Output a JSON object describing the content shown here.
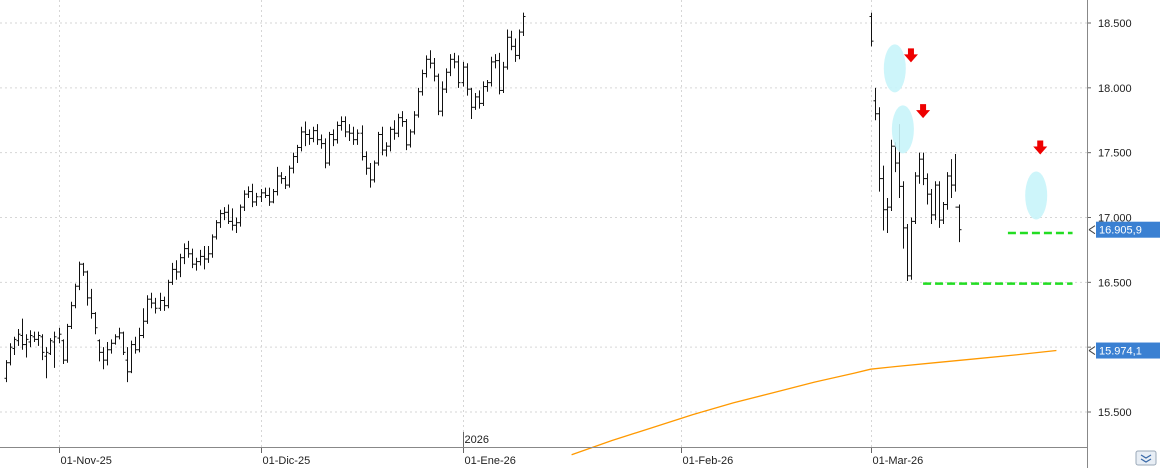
{
  "chart_data": {
    "type": "ohlc",
    "title": "",
    "xlabel": "",
    "ylabel": "",
    "ylim": [
      15200,
      18650
    ],
    "y_ticks": [
      {
        "value": 15500,
        "label": "15.500"
      },
      {
        "value": 16000,
        "label": ""
      },
      {
        "value": 16500,
        "label": "16.500"
      },
      {
        "value": 17000,
        "label": "17.000"
      },
      {
        "value": 17500,
        "label": "17.500"
      },
      {
        "value": 18000,
        "label": "18.000"
      },
      {
        "value": 18500,
        "label": "18.500"
      }
    ],
    "x_ticks": [
      {
        "index": 13,
        "label": "01-Nov-25"
      },
      {
        "index": 63,
        "label": "01-Dic-25"
      },
      {
        "index": 113,
        "label": "01-Ene-26"
      },
      {
        "index": 167,
        "label": "01-Feb-26"
      },
      {
        "index": 214,
        "label": "01-Mar-26"
      }
    ],
    "year_marker": {
      "index": 113,
      "label": "2026"
    },
    "grid": true,
    "series": [
      {
        "type": "ohlc",
        "bars": [
          [
            15760,
            15900,
            15730,
            15880
          ],
          [
            15880,
            16030,
            15860,
            16000
          ],
          [
            15990,
            16080,
            15940,
            16060
          ],
          [
            16050,
            16140,
            16010,
            16100
          ],
          [
            16090,
            16220,
            15980,
            16020
          ],
          [
            16020,
            16100,
            15920,
            16060
          ],
          [
            16040,
            16130,
            16000,
            16090
          ],
          [
            16080,
            16120,
            16040,
            16060
          ],
          [
            16060,
            16120,
            16010,
            16090
          ],
          [
            16080,
            16100,
            15900,
            15960
          ],
          [
            15930,
            16000,
            15760,
            15960
          ],
          [
            15950,
            16070,
            15940,
            16050
          ],
          [
            16040,
            16120,
            15840,
            16080
          ],
          [
            16070,
            16150,
            16030,
            16100
          ],
          [
            16050,
            16060,
            15870,
            15900
          ],
          [
            15900,
            16180,
            15880,
            16160
          ],
          [
            16160,
            16350,
            16140,
            16320
          ],
          [
            16320,
            16490,
            16300,
            16470
          ],
          [
            16470,
            16660,
            16440,
            16640
          ],
          [
            16640,
            16650,
            16550,
            16580
          ],
          [
            16580,
            16590,
            16320,
            16380
          ],
          [
            16380,
            16450,
            16220,
            16260
          ],
          [
            16260,
            16270,
            16100,
            16150
          ],
          [
            16050,
            16060,
            15890,
            15960
          ],
          [
            15960,
            16000,
            15830,
            15900
          ],
          [
            15900,
            16040,
            15860,
            15980
          ],
          [
            15980,
            16060,
            15950,
            16030
          ],
          [
            16030,
            16100,
            16020,
            16080
          ],
          [
            16080,
            16150,
            16060,
            16110
          ],
          [
            16110,
            16120,
            15940,
            15960
          ],
          [
            15900,
            16000,
            15730,
            15810
          ],
          [
            15810,
            16050,
            15800,
            16020
          ],
          [
            16020,
            16080,
            15950,
            15980
          ],
          [
            15980,
            16150,
            15960,
            16090
          ],
          [
            16090,
            16300,
            16070,
            16200
          ],
          [
            16200,
            16400,
            16180,
            16370
          ],
          [
            16370,
            16420,
            16300,
            16340
          ],
          [
            16340,
            16380,
            16260,
            16300
          ],
          [
            16300,
            16420,
            16280,
            16360
          ],
          [
            16360,
            16390,
            16280,
            16320
          ],
          [
            16320,
            16520,
            16300,
            16500
          ],
          [
            16500,
            16650,
            16480,
            16600
          ],
          [
            16600,
            16670,
            16520,
            16580
          ],
          [
            16580,
            16720,
            16540,
            16690
          ],
          [
            16690,
            16800,
            16640,
            16760
          ],
          [
            16760,
            16820,
            16690,
            16720
          ],
          [
            16720,
            16760,
            16610,
            16640
          ],
          [
            16640,
            16690,
            16590,
            16660
          ],
          [
            16660,
            16750,
            16630,
            16700
          ],
          [
            16700,
            16780,
            16600,
            16680
          ],
          [
            16680,
            16780,
            16650,
            16720
          ],
          [
            16720,
            16870,
            16690,
            16850
          ],
          [
            16850,
            16980,
            16830,
            16960
          ],
          [
            16960,
            17060,
            16920,
            17030
          ],
          [
            17030,
            17080,
            16980,
            17040
          ],
          [
            17040,
            17100,
            16950,
            16970
          ],
          [
            16970,
            17070,
            16900,
            16940
          ],
          [
            16940,
            17000,
            16880,
            16960
          ],
          [
            16960,
            17100,
            16930,
            17080
          ],
          [
            17080,
            17210,
            17050,
            17180
          ],
          [
            17180,
            17240,
            17150,
            17200
          ],
          [
            17200,
            17260,
            17080,
            17120
          ],
          [
            17120,
            17190,
            17090,
            17160
          ],
          [
            17160,
            17220,
            17120,
            17190
          ],
          [
            17190,
            17230,
            17150,
            17170
          ],
          [
            17170,
            17230,
            17090,
            17120
          ],
          [
            17120,
            17220,
            17110,
            17200
          ],
          [
            17200,
            17390,
            17170,
            17320
          ],
          [
            17320,
            17350,
            17260,
            17300
          ],
          [
            17300,
            17320,
            17220,
            17250
          ],
          [
            17250,
            17400,
            17230,
            17380
          ],
          [
            17380,
            17500,
            17340,
            17470
          ],
          [
            17470,
            17560,
            17420,
            17540
          ],
          [
            17540,
            17700,
            17510,
            17660
          ],
          [
            17660,
            17740,
            17550,
            17640
          ],
          [
            17640,
            17680,
            17560,
            17610
          ],
          [
            17610,
            17700,
            17580,
            17670
          ],
          [
            17670,
            17720,
            17560,
            17600
          ],
          [
            17600,
            17640,
            17530,
            17570
          ],
          [
            17570,
            17610,
            17380,
            17420
          ],
          [
            17420,
            17660,
            17400,
            17640
          ],
          [
            17640,
            17680,
            17550,
            17600
          ],
          [
            17600,
            17740,
            17570,
            17710
          ],
          [
            17710,
            17780,
            17670,
            17740
          ],
          [
            17740,
            17780,
            17620,
            17660
          ],
          [
            17660,
            17720,
            17590,
            17650
          ],
          [
            17650,
            17700,
            17560,
            17600
          ],
          [
            17600,
            17680,
            17560,
            17650
          ],
          [
            17650,
            17710,
            17440,
            17470
          ],
          [
            17470,
            17510,
            17330,
            17380
          ],
          [
            17380,
            17420,
            17230,
            17290
          ],
          [
            17290,
            17440,
            17270,
            17420
          ],
          [
            17420,
            17660,
            17400,
            17640
          ],
          [
            17640,
            17700,
            17480,
            17520
          ],
          [
            17520,
            17580,
            17470,
            17550
          ],
          [
            17550,
            17700,
            17510,
            17680
          ],
          [
            17680,
            17750,
            17600,
            17650
          ],
          [
            17650,
            17800,
            17620,
            17770
          ],
          [
            17770,
            17820,
            17700,
            17740
          ],
          [
            17740,
            17760,
            17520,
            17560
          ],
          [
            17560,
            17680,
            17540,
            17660
          ],
          [
            17660,
            17820,
            17640,
            17790
          ],
          [
            17790,
            18000,
            17770,
            17970
          ],
          [
            17970,
            18140,
            17940,
            18110
          ],
          [
            18110,
            18250,
            18080,
            18220
          ],
          [
            18220,
            18290,
            18150,
            18190
          ],
          [
            18190,
            18230,
            18050,
            18090
          ],
          [
            18090,
            18110,
            17790,
            17820
          ],
          [
            17820,
            18050,
            17780,
            17990
          ],
          [
            17990,
            18150,
            17960,
            18120
          ],
          [
            18120,
            18260,
            18090,
            18220
          ],
          [
            18220,
            18270,
            18150,
            18200
          ],
          [
            18200,
            18250,
            18000,
            18040
          ],
          [
            18040,
            18200,
            18010,
            18160
          ],
          [
            18160,
            18190,
            17940,
            17990
          ],
          [
            17990,
            18000,
            17760,
            17850
          ],
          [
            17850,
            17960,
            17830,
            17930
          ],
          [
            17930,
            17980,
            17840,
            17880
          ],
          [
            17880,
            18050,
            17860,
            18010
          ],
          [
            18010,
            18060,
            17970,
            18040
          ],
          [
            18040,
            18240,
            18010,
            18200
          ],
          [
            18200,
            18260,
            18150,
            18210
          ],
          [
            18210,
            18270,
            17950,
            17980
          ],
          [
            17980,
            18200,
            17960,
            18160
          ],
          [
            18160,
            18450,
            18140,
            18390
          ],
          [
            18390,
            18440,
            18290,
            18320
          ],
          [
            18320,
            18380,
            18200,
            18250
          ],
          [
            18250,
            18450,
            18220,
            18430
          ],
          [
            18430,
            18580,
            18400,
            18550
          ]
        ]
      },
      {
        "type": "ohlc",
        "bars": [
          [
            18550,
            18580,
            18320,
            18360
          ],
          [
            17900,
            18000,
            17750,
            17800
          ],
          [
            17800,
            17850,
            17200,
            17300
          ],
          [
            17300,
            17400,
            16900,
            17060
          ],
          [
            17060,
            17150,
            16880,
            17080
          ],
          [
            17080,
            17600,
            17050,
            17550
          ],
          [
            17550,
            17580,
            17350,
            17420
          ],
          [
            17420,
            17720,
            17150,
            17240
          ],
          [
            17240,
            17280,
            16760,
            16920
          ],
          [
            16920,
            16950,
            16510,
            16550
          ],
          [
            16550,
            17000,
            16520,
            16970
          ],
          [
            16970,
            17350,
            16950,
            17320
          ],
          [
            17320,
            17500,
            17260,
            17450
          ],
          [
            17450,
            17500,
            17250,
            17300
          ],
          [
            17300,
            17340,
            17100,
            17180
          ],
          [
            17180,
            17220,
            16950,
            17020
          ],
          [
            17020,
            17280,
            16980,
            17250
          ],
          [
            17250,
            17280,
            16920,
            16980
          ],
          [
            16980,
            17120,
            16950,
            17100
          ],
          [
            17100,
            17350,
            17060,
            17320
          ],
          [
            17320,
            17450,
            17150,
            17250
          ],
          [
            17250,
            17490,
            17200,
            17080
          ],
          [
            17080,
            17100,
            16810,
            16906
          ]
        ]
      }
    ],
    "moving_average": {
      "name": "",
      "color": "#ff9900",
      "points": [
        [
          140,
          15170
        ],
        [
          150,
          15280
        ],
        [
          160,
          15380
        ],
        [
          170,
          15480
        ],
        [
          180,
          15570
        ],
        [
          190,
          15650
        ],
        [
          200,
          15730
        ],
        [
          210,
          15800
        ],
        [
          214,
          15830
        ],
        [
          220,
          15850
        ],
        [
          230,
          15880
        ],
        [
          240,
          15910
        ],
        [
          250,
          15940
        ],
        [
          260,
          15974
        ]
      ]
    },
    "horizontal_levels": [
      {
        "value": 16880,
        "from_index": 248,
        "to_index": 264,
        "color": "#22dd22"
      },
      {
        "value": 16490,
        "from_index": 227,
        "to_index": 264,
        "color": "#22dd22"
      }
    ],
    "annotations": {
      "arrows": [
        {
          "index": 224,
          "value": 18250,
          "color": "#ee0000"
        },
        {
          "index": 227,
          "value": 17820,
          "color": "#ee0000"
        },
        {
          "index": 256,
          "value": 17540,
          "color": "#ee0000"
        }
      ],
      "ellipses": [
        {
          "index": 220,
          "value": 18150,
          "color": "#c8f4fa"
        },
        {
          "index": 222,
          "value": 17680,
          "color": "#c8f4fa"
        },
        {
          "index": 255,
          "value": 17170,
          "color": "#c8f4fa"
        }
      ]
    },
    "price_tags": [
      {
        "value": 16905.9,
        "label": "16.905,9",
        "color": "#3a80d2"
      },
      {
        "value": 15974.1,
        "label": "15.974,1",
        "color": "#3a80d2"
      }
    ]
  },
  "ui": {
    "scroll_icon": "double-chevron-icon"
  }
}
